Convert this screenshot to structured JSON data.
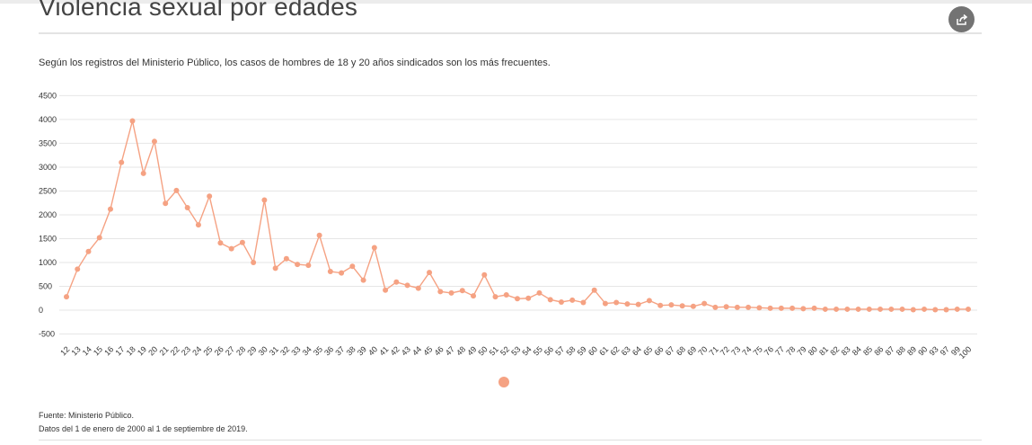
{
  "header": {
    "title": "Violencia sexual por edades",
    "share_icon": "share-icon"
  },
  "subtitle": "Según los registros del Ministerio Público, los casos de hombres de 18 y 20 años sindicados son los más frecuentes.",
  "footer": {
    "source": "Fuente: Ministerio Público.",
    "dates": "Datos del 1 de enero de 2000 al 1 de septiembre de 2019."
  },
  "colors": {
    "series": "#f5a283",
    "grid": "#e6e6e6",
    "text": "#333333"
  },
  "chart_data": {
    "type": "line",
    "title": "Violencia sexual por edades",
    "xlabel": "",
    "ylabel": "",
    "ylim": [
      -500,
      4500
    ],
    "yticks": [
      -500,
      0,
      500,
      1000,
      1500,
      2000,
      2500,
      3000,
      3500,
      4000,
      4500
    ],
    "grid": true,
    "legend": "bottom-center",
    "categories": [
      "12",
      "13",
      "14",
      "15",
      "16",
      "17",
      "18",
      "19",
      "20",
      "21",
      "22",
      "23",
      "24",
      "25",
      "26",
      "27",
      "28",
      "29",
      "30",
      "31",
      "32",
      "33",
      "34",
      "35",
      "36",
      "37",
      "38",
      "39",
      "40",
      "41",
      "42",
      "43",
      "44",
      "45",
      "46",
      "47",
      "48",
      "49",
      "50",
      "51",
      "52",
      "53",
      "54",
      "55",
      "56",
      "57",
      "58",
      "59",
      "60",
      "61",
      "62",
      "63",
      "64",
      "65",
      "66",
      "67",
      "68",
      "69",
      "70",
      "71",
      "72",
      "73",
      "74",
      "75",
      "76",
      "77",
      "78",
      "79",
      "80",
      "81",
      "82",
      "83",
      "84",
      "85",
      "86",
      "87",
      "88",
      "89",
      "90",
      "93",
      "97",
      "99",
      "100"
    ],
    "series": [
      {
        "values": [
          280,
          860,
          1230,
          1520,
          2120,
          3100,
          3970,
          2870,
          3540,
          2240,
          2510,
          2150,
          1790,
          2390,
          1410,
          1290,
          1420,
          1000,
          2310,
          880,
          1080,
          960,
          940,
          1570,
          810,
          780,
          920,
          630,
          1310,
          420,
          590,
          520,
          460,
          790,
          390,
          360,
          410,
          300,
          740,
          280,
          320,
          240,
          250,
          360,
          220,
          170,
          210,
          160,
          420,
          140,
          160,
          130,
          120,
          200,
          100,
          110,
          90,
          80,
          140,
          60,
          70,
          60,
          60,
          50,
          40,
          40,
          40,
          30,
          40,
          20,
          20,
          20,
          20,
          20,
          20,
          20,
          20,
          10,
          20,
          10,
          10,
          20,
          20
        ]
      }
    ]
  }
}
